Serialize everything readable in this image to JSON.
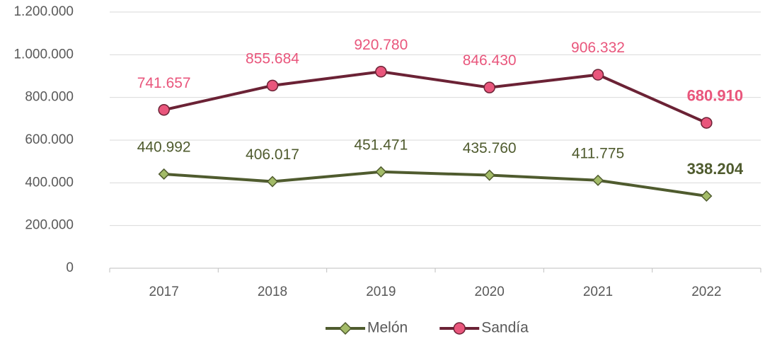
{
  "chart_data": {
    "type": "line",
    "categories": [
      "2017",
      "2018",
      "2019",
      "2020",
      "2021",
      "2022"
    ],
    "series": [
      {
        "name": "Melón",
        "color": "#4f5b2e",
        "marker": "diamond",
        "marker_color": "#a3bb68",
        "label_color": "#4f5b2e",
        "values": [
          440992,
          406017,
          451471,
          435760,
          411775,
          338204
        ],
        "value_labels": [
          "440.992",
          "406.017",
          "451.471",
          "435.760",
          "411.775",
          "338.204"
        ]
      },
      {
        "name": "Sandía",
        "color": "#6b2235",
        "marker": "circle",
        "marker_color": "#e9567c",
        "label_color": "#e9567c",
        "values": [
          741657,
          855684,
          920780,
          846430,
          906332,
          680910
        ],
        "value_labels": [
          "741.657",
          "855.684",
          "920.780",
          "846.430",
          "906.332",
          "680.910"
        ]
      }
    ],
    "ylim": [
      0,
      1200000
    ],
    "yticks": [
      0,
      {
        "value": 200000,
        "label": "200.000"
      },
      {
        "value": 400000,
        "label": "400.000"
      },
      {
        "value": 600000,
        "label": "600.000"
      },
      {
        "value": 800000,
        "label": "800.000"
      },
      {
        "value": 1000000,
        "label": "1.000.000"
      },
      {
        "value": 1200000,
        "label": "1.200.000"
      }
    ],
    "grid": true,
    "legend": "bottom"
  }
}
